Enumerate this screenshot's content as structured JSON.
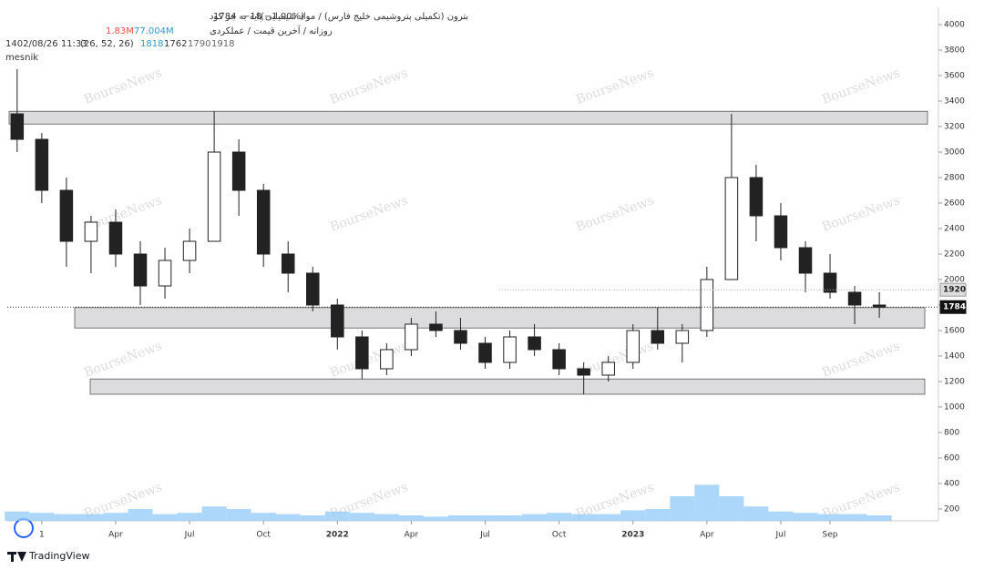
{
  "chart_data": {
    "type": "candlestick",
    "header": {
      "symbol": "بترون (تکمیلی پتروشیمی خلیج فارس) / مواد شیمیایی پایه به جز کود",
      "last": "1784",
      "change": "−18",
      "change_percent": "(−1.00%)",
      "settings": "روزانه / آخرین قیمت / عملکردی",
      "volume": "1.83M",
      "volume_ma": "77.004M",
      "timestamp": "1402/08/26 11:33",
      "ichimoku": "(26, 52, 26)",
      "conversion": "1818",
      "base": "1762",
      "span_a": "1790",
      "span_b": "1918",
      "author": "mesnik"
    },
    "watermark": "BourseNews",
    "brand": "TradingView",
    "x": [
      -1,
      0,
      1,
      2,
      3,
      4,
      5,
      6,
      7,
      8,
      9,
      10,
      11,
      12,
      13,
      14,
      15,
      16,
      17,
      18,
      19,
      20,
      21,
      22,
      23,
      24,
      25,
      26,
      27,
      28,
      29,
      30,
      31,
      32,
      33,
      34
    ],
    "open": [
      3300,
      3100,
      2700,
      2300,
      2450,
      2200,
      1950,
      2150,
      2300,
      3000,
      2700,
      2200,
      2050,
      1800,
      1550,
      1300,
      1450,
      1650,
      1600,
      1500,
      1350,
      1550,
      1450,
      1300,
      1250,
      1350,
      1600,
      1500,
      1600,
      2000,
      2800,
      2500,
      2250,
      2050,
      1900,
      1800
    ],
    "high": [
      3650,
      3150,
      2800,
      2500,
      2550,
      2300,
      2250,
      2400,
      3320,
      3100,
      2750,
      2300,
      2100,
      1850,
      1600,
      1500,
      1700,
      1750,
      1700,
      1550,
      1600,
      1650,
      1500,
      1350,
      1400,
      1650,
      1780,
      1650,
      2100,
      3300,
      2900,
      2600,
      2300,
      2200,
      1950,
      1900
    ],
    "low": [
      3000,
      2600,
      2100,
      2050,
      2100,
      1800,
      1850,
      2050,
      2300,
      2500,
      2100,
      1900,
      1750,
      1450,
      1220,
      1250,
      1400,
      1550,
      1450,
      1300,
      1300,
      1400,
      1250,
      1100,
      1200,
      1300,
      1450,
      1350,
      1550,
      2000,
      2300,
      2150,
      1900,
      1850,
      1650,
      1700
    ],
    "close": [
      3100,
      2700,
      2300,
      2450,
      2200,
      1950,
      2150,
      2300,
      3000,
      2700,
      2200,
      2050,
      1800,
      1550,
      1300,
      1450,
      1650,
      1600,
      1500,
      1350,
      1550,
      1450,
      1300,
      1250,
      1350,
      1600,
      1500,
      1600,
      2000,
      2800,
      2500,
      2250,
      2050,
      1900,
      1800,
      1784
    ],
    "volume": [
      180,
      170,
      160,
      160,
      170,
      200,
      160,
      170,
      220,
      200,
      170,
      160,
      150,
      180,
      170,
      160,
      150,
      140,
      150,
      150,
      150,
      160,
      170,
      160,
      160,
      190,
      200,
      300,
      390,
      300,
      220,
      180,
      170,
      160,
      160,
      150
    ],
    "zones": [
      [
        3220,
        3320
      ],
      [
        1620,
        1780
      ],
      [
        1100,
        1220
      ]
    ],
    "price_labels": [
      {
        "value": 1920,
        "label": "1920"
      },
      {
        "value": 1784,
        "label": "1784"
      }
    ],
    "xlim": [
      -1.4,
      36.4
    ],
    "xticks": [
      {
        "value": 0,
        "label": "1"
      },
      {
        "value": 3,
        "label": "Apr"
      },
      {
        "value": 6,
        "label": "Jul"
      },
      {
        "value": 9,
        "label": "Oct"
      },
      {
        "value": 12,
        "label": "2022"
      },
      {
        "value": 15,
        "label": "Apr"
      },
      {
        "value": 18,
        "label": "Jul"
      },
      {
        "value": 21,
        "label": "Oct"
      },
      {
        "value": 24,
        "label": "2023"
      },
      {
        "value": 27,
        "label": "Apr"
      },
      {
        "value": 30,
        "label": "Jul"
      },
      {
        "value": 32,
        "label": "Sep"
      }
    ],
    "ylim": [
      107,
      4136
    ],
    "yticks": [
      200,
      400,
      600,
      800,
      1000,
      1200,
      1400,
      1600,
      1800,
      2000,
      2200,
      2400,
      2600,
      2800,
      3000,
      3200,
      3400,
      3600,
      3800,
      4000
    ],
    "candle_color": "#222222",
    "volume_color": "#90caf9",
    "zone_color": "#dcdcde"
  }
}
